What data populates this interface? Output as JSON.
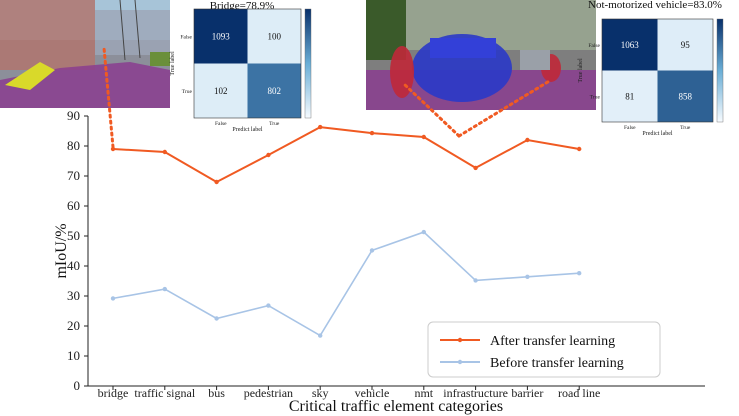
{
  "chart_data": {
    "type": "line",
    "xlabel": "Critical traffic element categories",
    "ylabel": "mIoU/%",
    "ylim": [
      0,
      90
    ],
    "yticks": [
      0,
      10,
      20,
      30,
      40,
      50,
      60,
      70,
      80,
      90
    ],
    "grid": false,
    "legend_position": "bottom-right",
    "categories": [
      "bridge",
      "traffic signal",
      "bus",
      "pedestrian",
      "sky",
      "vehicle",
      "nmt",
      "infrastructure",
      "barrier",
      "road line"
    ],
    "series": [
      {
        "name": "After transfer learning",
        "color": "#f05a22",
        "marker": "dot",
        "values": [
          79,
          78,
          68,
          77,
          86.3,
          84.3,
          83,
          72.7,
          82,
          79
        ]
      },
      {
        "name": "Before transfer learning",
        "color": "#a8c4e6",
        "marker": "dot",
        "values": [
          29.2,
          32.3,
          22.5,
          26.8,
          16.8,
          45.2,
          51.3,
          35.2,
          36.4,
          37.6
        ]
      }
    ],
    "insets": [
      {
        "title": "Bridge=78.9%",
        "row_labels": [
          "False",
          "True"
        ],
        "col_labels": [
          "False",
          "True"
        ],
        "xlabel": "Predict label",
        "ylabel": "True label",
        "matrix": [
          [
            1093,
            100
          ],
          [
            102,
            802
          ]
        ]
      },
      {
        "title": "Not-motorized vehicle=83.0%",
        "row_labels": [
          "False",
          "True"
        ],
        "col_labels": [
          "False",
          "True"
        ],
        "xlabel": "Predict label",
        "ylabel": "True label",
        "matrix": [
          [
            1063,
            95
          ],
          [
            81,
            858
          ]
        ]
      }
    ]
  }
}
